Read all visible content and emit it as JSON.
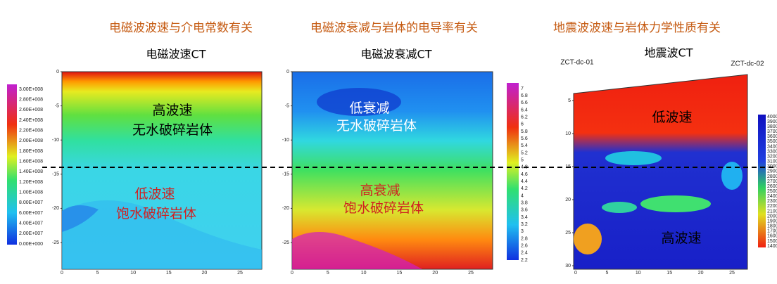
{
  "headings": [
    "电磁波波速与介电常数有关",
    "电磁波衰减与岩体的电导率有关",
    "地震波波速与岩体力学性质有关"
  ],
  "panels": [
    {
      "title": "电磁波速CT",
      "labels": [
        "高波速",
        "无水破碎岩体",
        "低波速",
        "饱水破碎岩体"
      ],
      "colorbar": [
        "3.00E+008",
        "2.80E+008",
        "2.60E+008",
        "2.40E+008",
        "2.20E+008",
        "2.00E+008",
        "1.80E+008",
        "1.60E+008",
        "1.40E+008",
        "1.20E+008",
        "1.00E+008",
        "8.00E+007",
        "6.00E+007",
        "4.00E+007",
        "2.00E+007",
        "0.00E+000"
      ],
      "yticks": [
        "0",
        "-5",
        "-10",
        "-15",
        "-20",
        "-25"
      ],
      "xticks": [
        "0",
        "5",
        "10",
        "15",
        "20",
        "25"
      ]
    },
    {
      "title": "电磁波衰减CT",
      "labels": [
        "低衰减",
        "无水破碎岩体",
        "高衰减",
        "饱水破碎岩体"
      ],
      "colorbar": [
        "7",
        "6.8",
        "6.6",
        "6.4",
        "6.2",
        "6",
        "5.8",
        "5.6",
        "5.4",
        "5.2",
        "5",
        "4.8",
        "4.6",
        "4.4",
        "4.2",
        "4",
        "3.8",
        "3.6",
        "3.4",
        "3.2",
        "3",
        "2.8",
        "2.6",
        "2.4",
        "2.2"
      ],
      "yticks": [
        "0",
        "-5",
        "-10",
        "-15",
        "-20",
        "-25"
      ],
      "xticks": [
        "0",
        "5",
        "10",
        "15",
        "20",
        "25"
      ]
    },
    {
      "title": "地震波CT",
      "wells": [
        "ZCT-dc-01",
        "ZCT-dc-02"
      ],
      "labels": [
        "低波速",
        "高波速"
      ],
      "colorbar": [
        "4000",
        "3900",
        "3800",
        "3700",
        "3600",
        "3500",
        "3400",
        "3300",
        "3200",
        "3100",
        "3000",
        "2900",
        "2800",
        "2700",
        "2600",
        "2500",
        "2400",
        "2300",
        "2200",
        "2100",
        "2000",
        "1900",
        "1800",
        "1700",
        "1600",
        "1500",
        "1400"
      ],
      "yticks": [
        "5",
        "10",
        "15",
        "20",
        "25",
        "30"
      ],
      "xticks": [
        "0",
        "5",
        "10",
        "15",
        "20",
        "25"
      ]
    }
  ]
}
